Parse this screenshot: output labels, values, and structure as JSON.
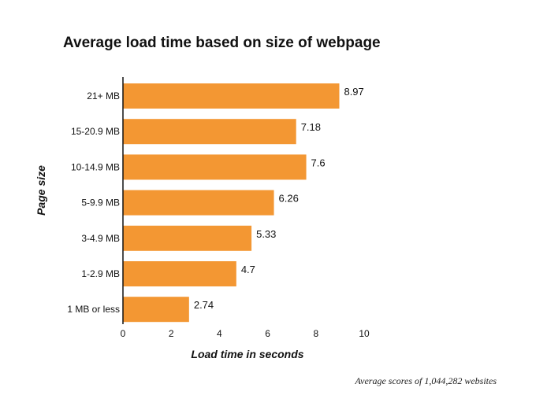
{
  "chart_data": {
    "type": "bar",
    "orientation": "horizontal",
    "title": "Average load time based on size of webpage",
    "xlabel": "Load time in seconds",
    "ylabel": "Page size",
    "categories": [
      "21+ MB",
      "15-20.9 MB",
      "10-14.9 MB",
      "5-9.9 MB",
      "3-4.9 MB",
      "1-2.9 MB",
      "1 MB or less"
    ],
    "values": [
      8.97,
      7.18,
      7.6,
      6.26,
      5.33,
      4.7,
      2.74
    ],
    "value_labels": [
      "8.97",
      "7.18",
      "7.6",
      "6.26",
      "5.33",
      "4.7",
      "2.74"
    ],
    "xlim": [
      0,
      10
    ],
    "x_ticks": [
      "0",
      "2",
      "4",
      "6",
      "8",
      "10"
    ],
    "grid": false,
    "bar_color": "#F39733",
    "footnote": "Average scores of 1,044,282 websites"
  }
}
